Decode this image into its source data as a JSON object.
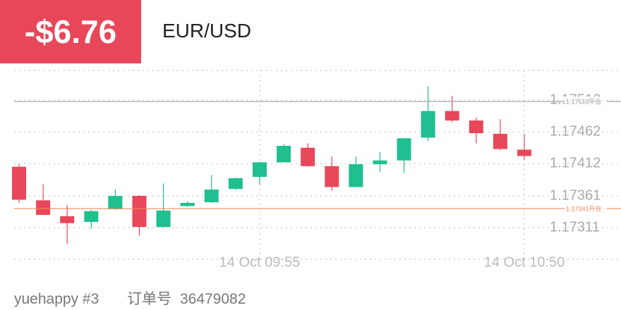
{
  "header": {
    "pnl": "-$6.76",
    "symbol": "EUR/USD"
  },
  "chart_data": {
    "type": "candlestick",
    "categories": [
      null,
      null,
      null,
      null,
      null,
      null,
      null,
      null,
      null,
      null,
      "14 Oct 09:55",
      null,
      null,
      null,
      null,
      null,
      null,
      null,
      null,
      null,
      null,
      "14 Oct 10:50"
    ],
    "open": [
      1.17407,
      1.17354,
      1.17329,
      1.1732,
      1.1734,
      1.17361,
      1.17312,
      1.17345,
      1.17351,
      1.17372,
      1.17391,
      1.17414,
      1.17437,
      1.17408,
      1.17375,
      1.17411,
      1.17417,
      1.17453,
      1.17495,
      1.1748,
      1.17459,
      1.17434
    ],
    "high": [
      1.17411,
      1.17379,
      1.17347,
      1.17339,
      1.17372,
      1.17362,
      1.17381,
      1.17353,
      1.17394,
      1.1739,
      1.17415,
      1.17443,
      1.17444,
      1.17423,
      1.17423,
      1.1743,
      1.17452,
      1.17534,
      1.17519,
      1.17485,
      1.17482,
      1.17459
    ],
    "low": [
      1.1735,
      1.17331,
      1.17285,
      1.17309,
      1.17339,
      1.17298,
      1.17311,
      1.17344,
      1.1735,
      1.1737,
      1.17379,
      1.17414,
      1.17407,
      1.17369,
      1.17375,
      1.17399,
      1.17397,
      1.17448,
      1.17477,
      1.17444,
      1.17433,
      1.17418
    ],
    "close": [
      1.17355,
      1.17331,
      1.17318,
      1.17337,
      1.17361,
      1.17312,
      1.17338,
      1.1735,
      1.17371,
      1.17389,
      1.17414,
      1.1744,
      1.17408,
      1.17375,
      1.17411,
      1.17417,
      1.17452,
      1.17495,
      1.1748,
      1.1746,
      1.17435,
      1.17424
    ],
    "up_color": "#1fbf8f",
    "down_color": "#e8475a",
    "ylim": [
      1.17261,
      1.17559
    ],
    "yticks": [
      1.17311,
      1.17361,
      1.17412,
      1.17462,
      1.17512
    ],
    "grid": true,
    "lines": [
      {
        "value": 1.1751,
        "label": "1.17510平仓",
        "color": "#a0a0a0"
      },
      {
        "value": 1.17341,
        "label": "1.17341开仓",
        "color": "#f0875a"
      }
    ]
  },
  "footer": {
    "account": "yuehappy #3",
    "order_label": "订单号",
    "order_number": "36479082"
  }
}
